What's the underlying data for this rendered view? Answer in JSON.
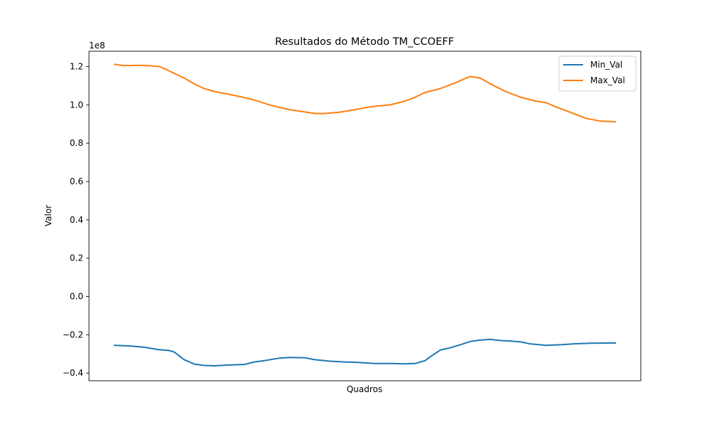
{
  "chart_data": {
    "type": "line",
    "title": "Resultados do Método TM_CCOEFF",
    "xlabel": "Quadros",
    "ylabel": "Valor",
    "y_scale_label": "1e8",
    "y_tick_labels": [
      "−0.4",
      "−0.2",
      "0.0",
      "0.2",
      "0.4",
      "0.6",
      "0.8",
      "1.0",
      "1.2"
    ],
    "y_ticks": [
      -0.4,
      -0.2,
      0.0,
      0.2,
      0.4,
      0.6,
      0.8,
      1.0,
      1.2
    ],
    "ylim": [
      -0.44,
      1.28
    ],
    "xlim": [
      0,
      1
    ],
    "x_ticks_shown": false,
    "grid": false,
    "legend_placement": "top-right",
    "series": [
      {
        "name": "Min_Val",
        "color": "#1f77b4",
        "x": [
          0.0,
          0.03,
          0.06,
          0.09,
          0.11,
          0.12,
          0.14,
          0.16,
          0.18,
          0.2,
          0.23,
          0.26,
          0.28,
          0.3,
          0.33,
          0.35,
          0.38,
          0.4,
          0.43,
          0.46,
          0.49,
          0.52,
          0.55,
          0.58,
          0.6,
          0.62,
          0.63,
          0.65,
          0.67,
          0.69,
          0.71,
          0.73,
          0.75,
          0.77,
          0.79,
          0.81,
          0.83,
          0.86,
          0.89,
          0.92,
          0.95,
          0.98,
          1.0
        ],
        "y": [
          -0.255,
          -0.258,
          -0.265,
          -0.278,
          -0.282,
          -0.29,
          -0.33,
          -0.353,
          -0.36,
          -0.362,
          -0.358,
          -0.355,
          -0.342,
          -0.335,
          -0.322,
          -0.318,
          -0.32,
          -0.33,
          -0.338,
          -0.342,
          -0.345,
          -0.35,
          -0.35,
          -0.352,
          -0.35,
          -0.335,
          -0.315,
          -0.28,
          -0.268,
          -0.252,
          -0.235,
          -0.228,
          -0.224,
          -0.23,
          -0.233,
          -0.237,
          -0.248,
          -0.255,
          -0.252,
          -0.247,
          -0.244,
          -0.243,
          -0.243
        ]
      },
      {
        "name": "Max_Val",
        "color": "#ff7f0e",
        "x": [
          0.0,
          0.02,
          0.05,
          0.07,
          0.09,
          0.1,
          0.12,
          0.14,
          0.16,
          0.18,
          0.2,
          0.23,
          0.26,
          0.28,
          0.31,
          0.33,
          0.35,
          0.38,
          0.4,
          0.42,
          0.45,
          0.48,
          0.5,
          0.52,
          0.55,
          0.58,
          0.6,
          0.62,
          0.65,
          0.68,
          0.7,
          0.71,
          0.73,
          0.75,
          0.78,
          0.81,
          0.84,
          0.86,
          0.88,
          0.91,
          0.94,
          0.97,
          1.0
        ],
        "y": [
          1.212,
          1.205,
          1.207,
          1.205,
          1.2,
          1.19,
          1.165,
          1.14,
          1.11,
          1.085,
          1.07,
          1.055,
          1.038,
          1.025,
          1.0,
          0.987,
          0.975,
          0.963,
          0.955,
          0.955,
          0.962,
          0.975,
          0.985,
          0.993,
          1.0,
          1.02,
          1.04,
          1.065,
          1.085,
          1.115,
          1.138,
          1.148,
          1.14,
          1.11,
          1.07,
          1.04,
          1.02,
          1.012,
          0.99,
          0.96,
          0.93,
          0.915,
          0.912
        ]
      }
    ]
  }
}
